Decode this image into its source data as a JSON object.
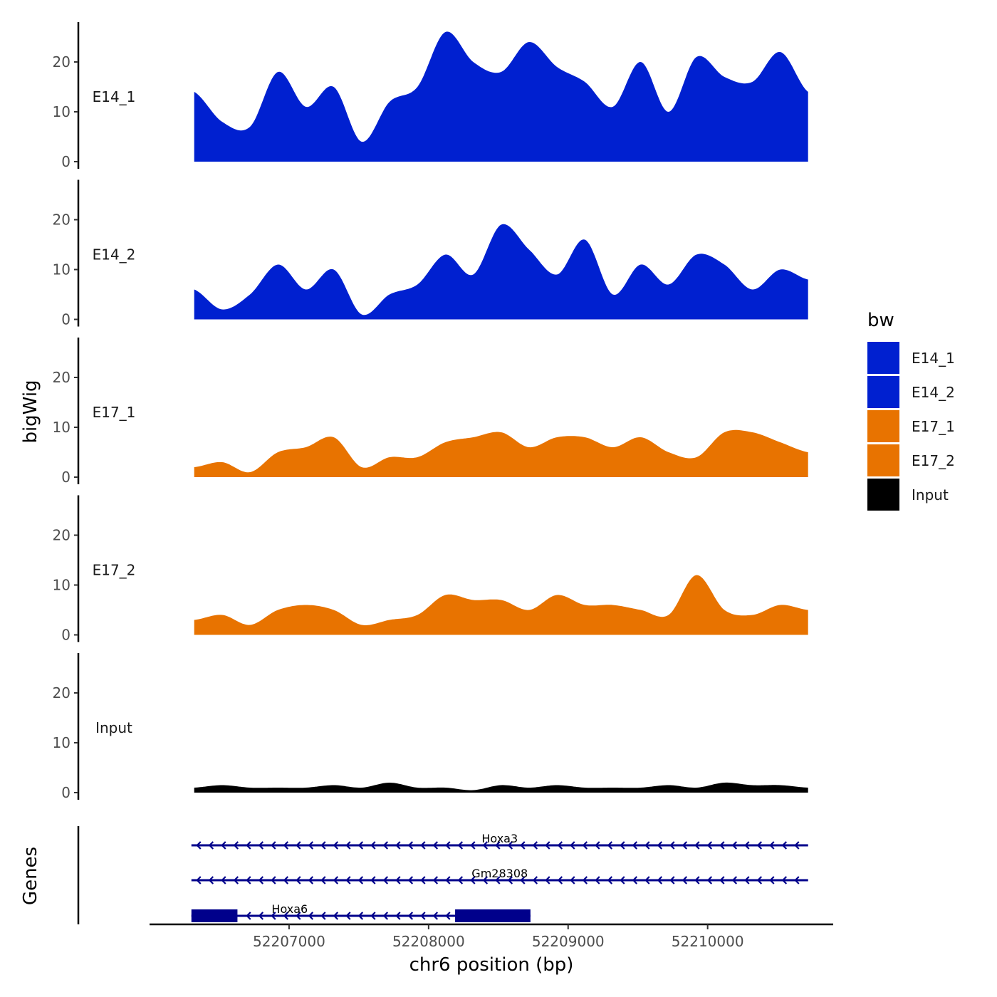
{
  "chart_data": {
    "type": "area",
    "title": "",
    "xlabel": "chr6 position (bp)",
    "ylabel": "bigWig",
    "genes_label": "Genes",
    "xlim": [
      52206000,
      52210900
    ],
    "x_ticks": [
      52207000,
      52208000,
      52209000,
      52210000
    ],
    "x_tick_labels": [
      "52207000",
      "52208000",
      "52209000",
      "52210000"
    ],
    "ylim": [
      0,
      28
    ],
    "y_ticks": [
      0,
      10,
      20
    ],
    "y_tick_labels": [
      "0",
      "10",
      "20"
    ],
    "x": [
      52206320,
      52206520,
      52206720,
      52206920,
      52207120,
      52207320,
      52207520,
      52207720,
      52207920,
      52208120,
      52208320,
      52208520,
      52208720,
      52208920,
      52209120,
      52209320,
      52209520,
      52209720,
      52209920,
      52210120,
      52210320,
      52210520,
      52210720
    ],
    "series": [
      {
        "name": "E14_1",
        "color": "#0020d0",
        "values": [
          14,
          8,
          7,
          18,
          11,
          15,
          4,
          12,
          15,
          26,
          20,
          18,
          24,
          19,
          16,
          11,
          20,
          10,
          21,
          17,
          16,
          22,
          14
        ]
      },
      {
        "name": "E14_2",
        "color": "#0020d0",
        "values": [
          6,
          2,
          5,
          11,
          6,
          10,
          1,
          5,
          7,
          13,
          9,
          19,
          14,
          9,
          16,
          5,
          11,
          7,
          13,
          11,
          6,
          10,
          8
        ]
      },
      {
        "name": "E17_1",
        "color": "#e87300",
        "values": [
          2,
          3,
          1,
          5,
          6,
          8,
          2,
          4,
          4,
          7,
          8,
          9,
          6,
          8,
          8,
          6,
          8,
          5,
          4,
          9,
          9,
          7,
          5
        ]
      },
      {
        "name": "E17_2",
        "color": "#e87300",
        "values": [
          3,
          4,
          2,
          5,
          6,
          5,
          2,
          3,
          4,
          8,
          7,
          7,
          5,
          8,
          6,
          6,
          5,
          4,
          12,
          5,
          4,
          6,
          5
        ]
      },
      {
        "name": "Input",
        "color": "#000000",
        "values": [
          1,
          1.5,
          1,
          1,
          1,
          1.5,
          1,
          2,
          1,
          1,
          0.5,
          1.5,
          1,
          1.5,
          1,
          1,
          1,
          1.5,
          1,
          2,
          1.5,
          1.5,
          1
        ]
      }
    ],
    "legend": {
      "title": "bw",
      "position": "right",
      "entries": [
        {
          "label": "E14_1",
          "color": "#0020d0"
        },
        {
          "label": "E14_2",
          "color": "#0020d0"
        },
        {
          "label": "E17_1",
          "color": "#e87300"
        },
        {
          "label": "E17_2",
          "color": "#e87300"
        },
        {
          "label": "Input",
          "color": "#000000"
        }
      ]
    },
    "genes": [
      {
        "name": "Hoxa3",
        "start": 52206300,
        "end": 52210720,
        "strand": "-",
        "exons": []
      },
      {
        "name": "Gm28308",
        "start": 52206300,
        "end": 52210720,
        "strand": "-",
        "exons": []
      },
      {
        "name": "Hoxa6",
        "start": 52206300,
        "end": 52208730,
        "strand": "-",
        "exons": [
          [
            52206300,
            52206630
          ],
          [
            52208190,
            52208730
          ]
        ]
      }
    ],
    "gene_color": "#00008b"
  }
}
